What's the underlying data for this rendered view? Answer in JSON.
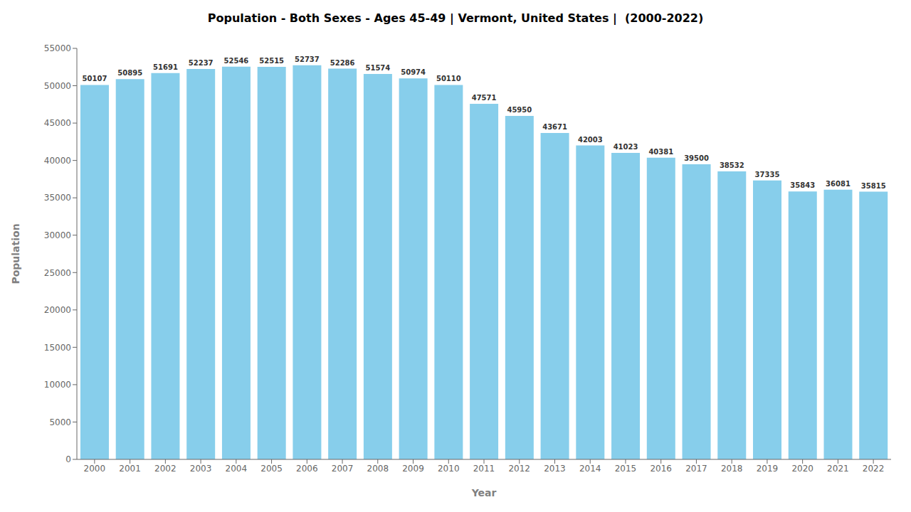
{
  "chart_data": {
    "type": "bar",
    "title": "Population - Both Sexes - Ages 45-49 | Vermont, United States |  (2000-2022)",
    "xlabel": "Year",
    "ylabel": "Population",
    "categories": [
      "2000",
      "2001",
      "2002",
      "2003",
      "2004",
      "2005",
      "2006",
      "2007",
      "2008",
      "2009",
      "2010",
      "2011",
      "2012",
      "2013",
      "2014",
      "2015",
      "2016",
      "2017",
      "2018",
      "2019",
      "2020",
      "2021",
      "2022"
    ],
    "values": [
      50107,
      50895,
      51691,
      52237,
      52546,
      52515,
      52737,
      52286,
      51574,
      50974,
      50110,
      47571,
      45950,
      43671,
      42003,
      41023,
      40381,
      39500,
      38532,
      37335,
      35843,
      36081,
      35815
    ],
    "color": "#87CEEB",
    "ylim": [
      0,
      55000
    ],
    "yticks": [
      0,
      5000,
      10000,
      15000,
      20000,
      25000,
      30000,
      35000,
      40000,
      45000,
      50000,
      55000
    ],
    "grid": false,
    "data_labels": true
  }
}
